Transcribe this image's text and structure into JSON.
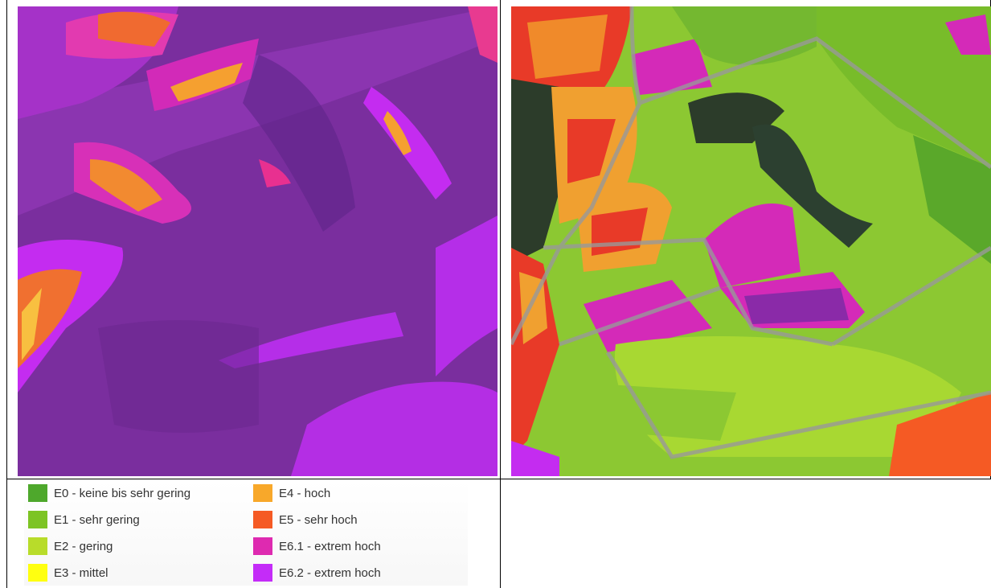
{
  "legend": {
    "items": [
      {
        "label": "E0 - keine bis sehr gering",
        "color": "#4ea82c"
      },
      {
        "label": "E1 - sehr gering",
        "color": "#7dc424"
      },
      {
        "label": "E2 - gering",
        "color": "#b8dc2a"
      },
      {
        "label": "E3 - mittel",
        "color": "#ffff10"
      },
      {
        "label": "E4 - hoch",
        "color": "#f8a82a"
      },
      {
        "label": "E5 - sehr hoch",
        "color": "#f55a24"
      },
      {
        "label": "E6.1 - extrem hoch",
        "color": "#de2ab0"
      },
      {
        "label": "E6.2 - extrem hoch",
        "color": "#c42cf8"
      }
    ]
  }
}
